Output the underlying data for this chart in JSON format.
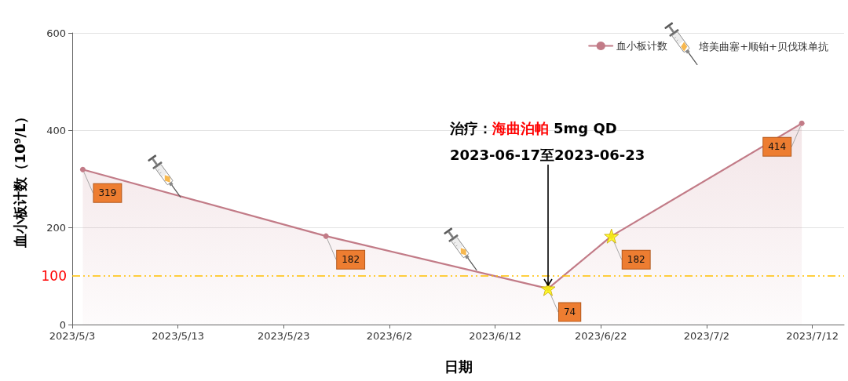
{
  "chart_data": {
    "type": "area",
    "xlabel": "日期",
    "ylabel": "血小板计数（10⁹/L）",
    "xlim": [
      "2023-05-03",
      "2023-07-15"
    ],
    "xticks": [
      {
        "value": "2023-05-03",
        "label": "2023/5/3"
      },
      {
        "value": "2023-05-13",
        "label": "2023/5/13"
      },
      {
        "value": "2023-05-23",
        "label": "2023/5/23"
      },
      {
        "value": "2023-06-02",
        "label": "2023/6/2"
      },
      {
        "value": "2023-06-12",
        "label": "2023/6/12"
      },
      {
        "value": "2023-06-22",
        "label": "2023/6/22"
      },
      {
        "value": "2023-07-02",
        "label": "2023/7/2"
      },
      {
        "value": "2023-07-12",
        "label": "2023/7/12"
      }
    ],
    "ylim": [
      0,
      600
    ],
    "yticks": [
      0,
      200,
      400,
      600
    ],
    "grid": "y",
    "legend": "top right",
    "series": [
      {
        "name": "血小板计数",
        "color": "#c27b87",
        "marker": "circle",
        "x": [
          "2023-05-04",
          "2023-05-27",
          "2023-06-17",
          "2023-06-23",
          "2023-07-11"
        ],
        "values": [
          319,
          182,
          74,
          182,
          414
        ],
        "value_labels": [
          "319",
          "182",
          "74",
          "182",
          "414"
        ]
      },
      {
        "type": "scatter",
        "color": "#ffff00",
        "marker": "star",
        "x": [
          "2023-06-17",
          "2023-06-23"
        ],
        "values": [
          74,
          182
        ]
      },
      {
        "name": "培美曲塞+顺铂+贝伐珠单抗",
        "type": "scatter",
        "color": "#f5a623",
        "marker": "diamond",
        "x": [
          "2023-05-12",
          "2023-06-09"
        ],
        "values": [
          300,
          150
        ]
      }
    ],
    "ref_lines": [
      {
        "axis": "y",
        "value": 100,
        "label": "100",
        "color": "#ffc000",
        "line_style": "dashed"
      }
    ],
    "annotations": [
      "治疗：",
      "海曲泊帕",
      "5mg QD",
      {
        "text": "2023-06-17至2023-06-23",
        "x": "2023-06-17",
        "y": 74
      }
    ]
  }
}
